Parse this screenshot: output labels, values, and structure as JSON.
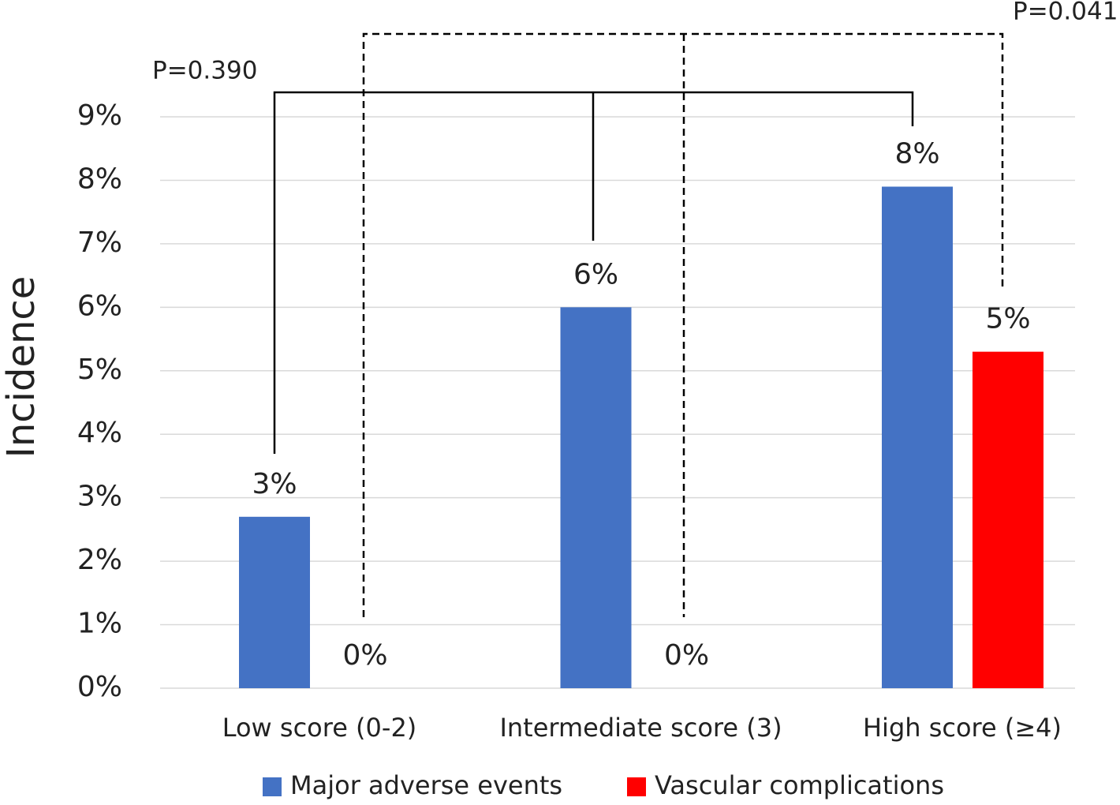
{
  "chart_data": {
    "type": "bar",
    "y_label": "Incidence",
    "categories": [
      "Low score (0-2)",
      "Intermediate score (3)",
      "High score (≥4)"
    ],
    "series": [
      {
        "name": "Major adverse events",
        "color": "#4472c4",
        "values": [
          2.7,
          6.0,
          7.9
        ],
        "value_labels": [
          "3%",
          "6%",
          "8%"
        ]
      },
      {
        "name": "Vascular complications",
        "color": "#ff0000",
        "values": [
          0,
          0,
          5.3
        ],
        "value_labels": [
          "0%",
          "0%",
          "5%"
        ]
      }
    ],
    "ylim": [
      0,
      9
    ],
    "yticks": [
      {
        "value": 0,
        "label": "0%"
      },
      {
        "value": 1,
        "label": "1%"
      },
      {
        "value": 2,
        "label": "2%"
      },
      {
        "value": 3,
        "label": "3%"
      },
      {
        "value": 4,
        "label": "4%"
      },
      {
        "value": 5,
        "label": "5%"
      },
      {
        "value": 6,
        "label": "6%"
      },
      {
        "value": 7,
        "label": "7%"
      },
      {
        "value": 8,
        "label": "8%"
      },
      {
        "value": 9,
        "label": "9%"
      }
    ],
    "grid": true,
    "legend": "bottom",
    "annotations": [
      "P=0.390",
      "P=0.041"
    ]
  }
}
